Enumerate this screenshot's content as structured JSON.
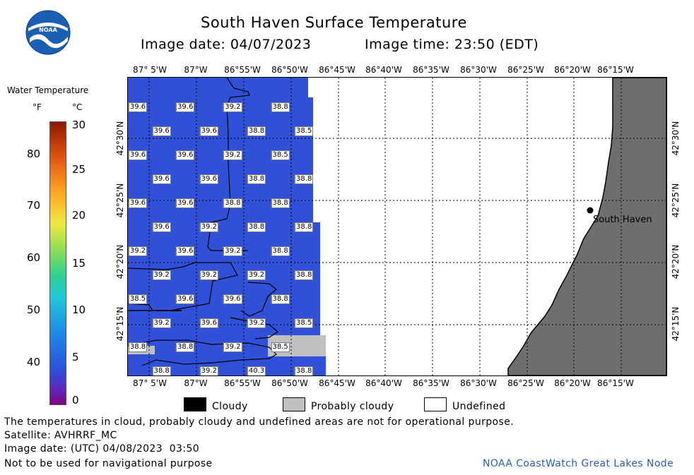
{
  "header": {
    "title": "South Haven Surface Temperature",
    "image_date_label": "Image date: 04/07/2023",
    "image_time_label": "Image time: 23:50 (EDT)"
  },
  "logo": {
    "text": "NOAA"
  },
  "scale": {
    "title": "Water Temperature",
    "unit_f": "°F",
    "unit_c": "°C",
    "f_ticks": [
      "80",
      "70",
      "60",
      "50",
      "40"
    ],
    "c_ticks": [
      "30",
      "25",
      "20",
      "15",
      "10",
      "5",
      "0"
    ]
  },
  "map": {
    "lon_labels": [
      "87° 5'W",
      "87°W",
      "86°55'W",
      "86°50'W",
      "86°45'W",
      "86°40'W",
      "86°35'W",
      "86°30'W",
      "86°25'W",
      "86°20'W",
      "86°15'W"
    ],
    "lat_labels": [
      "42°30'N",
      "42°25'N",
      "42°20'N",
      "42°15'N"
    ],
    "city_label": "South Haven",
    "temperature_labels": [
      {
        "t": "39.6",
        "c": 0,
        "r": 0
      },
      {
        "t": "39.6",
        "c": 2,
        "r": 0
      },
      {
        "t": "39.2",
        "c": 4,
        "r": 0
      },
      {
        "t": "38.8",
        "c": 6,
        "r": 0
      },
      {
        "t": "39.6",
        "c": 1,
        "r": 1
      },
      {
        "t": "39.6",
        "c": 3,
        "r": 1
      },
      {
        "t": "38.8",
        "c": 5,
        "r": 1
      },
      {
        "t": "38.5",
        "c": 7,
        "r": 1
      },
      {
        "t": "39.6",
        "c": 0,
        "r": 2
      },
      {
        "t": "39.6",
        "c": 2,
        "r": 2
      },
      {
        "t": "39.2",
        "c": 4,
        "r": 2
      },
      {
        "t": "38.5",
        "c": 6,
        "r": 2
      },
      {
        "t": "39.6",
        "c": 1,
        "r": 3
      },
      {
        "t": "39.6",
        "c": 3,
        "r": 3
      },
      {
        "t": "38.8",
        "c": 5,
        "r": 3
      },
      {
        "t": "38.8",
        "c": 7,
        "r": 3
      },
      {
        "t": "39.6",
        "c": 0,
        "r": 4
      },
      {
        "t": "39.6",
        "c": 2,
        "r": 4
      },
      {
        "t": "38.8",
        "c": 4,
        "r": 4
      },
      {
        "t": "38.8",
        "c": 6,
        "r": 4
      },
      {
        "t": "39.6",
        "c": 1,
        "r": 5
      },
      {
        "t": "39.2",
        "c": 3,
        "r": 5
      },
      {
        "t": "38.8",
        "c": 5,
        "r": 5
      },
      {
        "t": "38.8",
        "c": 7,
        "r": 5
      },
      {
        "t": "39.2",
        "c": 0,
        "r": 6
      },
      {
        "t": "39.6",
        "c": 2,
        "r": 6
      },
      {
        "t": "39.2",
        "c": 4,
        "r": 6
      },
      {
        "t": "38.8",
        "c": 6,
        "r": 6
      },
      {
        "t": "39.2",
        "c": 1,
        "r": 7
      },
      {
        "t": "39.2",
        "c": 3,
        "r": 7
      },
      {
        "t": "39.2",
        "c": 5,
        "r": 7
      },
      {
        "t": "38.8",
        "c": 7,
        "r": 7
      },
      {
        "t": "38.5",
        "c": 0,
        "r": 8
      },
      {
        "t": "39.6",
        "c": 2,
        "r": 8
      },
      {
        "t": "39.6",
        "c": 4,
        "r": 8
      },
      {
        "t": "38.8",
        "c": 6,
        "r": 8
      },
      {
        "t": "39.2",
        "c": 1,
        "r": 9
      },
      {
        "t": "39.6",
        "c": 3,
        "r": 9
      },
      {
        "t": "39.2",
        "c": 5,
        "r": 9
      },
      {
        "t": "38.5",
        "c": 7,
        "r": 9
      },
      {
        "t": "38.8",
        "c": 0,
        "r": 10
      },
      {
        "t": "38.8",
        "c": 2,
        "r": 10
      },
      {
        "t": "39.2",
        "c": 4,
        "r": 10
      },
      {
        "t": "38.5",
        "c": 6,
        "r": 10
      },
      {
        "t": "38.8",
        "c": 1,
        "r": 11
      },
      {
        "t": "39.2",
        "c": 3,
        "r": 11
      },
      {
        "t": "40.3",
        "c": 5,
        "r": 11
      },
      {
        "t": "38.8",
        "c": 7,
        "r": 11
      }
    ]
  },
  "legend": {
    "cloudy": "Cloudy",
    "probably_cloudy": "Probably cloudy",
    "undefined": "Undefined"
  },
  "footer": {
    "note": "The temperatures in cloud, probably cloudy and undefined areas are not for operational purpose.",
    "satellite": "Satellite: AVHRRF_MC",
    "utc_date": "Image date: (UTC) 04/08/2023  03:50",
    "nav_warning": "Not to be used for navigational purpose",
    "credit": "NOAA CoastWatch Great Lakes Node"
  },
  "colors": {
    "water": "#3050d8",
    "land": "#6e6e6e",
    "probably_cloudy": "#c0c0c0",
    "credit": "#2a5fb0"
  }
}
